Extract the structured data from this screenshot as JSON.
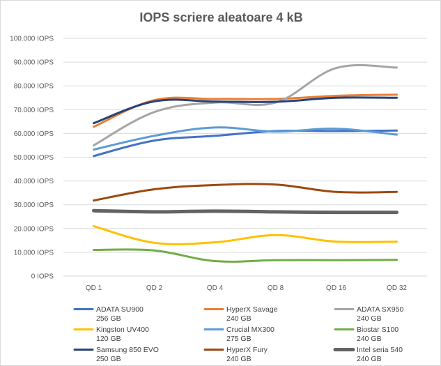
{
  "chart_data": {
    "type": "line",
    "title": "IOPS scriere aleatoare 4 kB",
    "categories": [
      "QD 1",
      "QD 2",
      "QD 4",
      "QD 8",
      "QD 16",
      "QD 32"
    ],
    "y_ticks": [
      "0 IOPS",
      "10.000 IOPS",
      "20.000 IOPS",
      "30.000 IOPS",
      "40.000 IOPS",
      "50.000 IOPS",
      "60.000 IOPS",
      "70.000 IOPS",
      "80.000 IOPS",
      "90.000 IOPS",
      "100.000 IOPS"
    ],
    "ylim": [
      0,
      100000
    ],
    "grid": true,
    "legend_position": "bottom",
    "series": [
      {
        "name": "ADATA SU900 256 GB",
        "line1": "ADATA SU900",
        "line2": "256 GB",
        "color": "#4472c4",
        "width": 3,
        "values": [
          50500,
          57000,
          59000,
          61000,
          61000,
          61200
        ]
      },
      {
        "name": "HyperX Savage 240 GB",
        "line1": "HyperX Savage",
        "line2": "240 GB",
        "color": "#ed7d31",
        "width": 3,
        "values": [
          62800,
          74000,
          74500,
          74500,
          75800,
          76300
        ]
      },
      {
        "name": "ADATA SX950 240 GB",
        "line1": "ADATA SX950",
        "line2": "240 GB",
        "color": "#a5a5a5",
        "width": 3,
        "values": [
          55000,
          69000,
          73000,
          73000,
          87500,
          87700
        ]
      },
      {
        "name": "Kingston UV400 120 GB",
        "line1": "Kingston UV400",
        "line2": "120 GB",
        "color": "#ffc000",
        "width": 3,
        "values": [
          21000,
          14000,
          14200,
          17200,
          14500,
          14500
        ]
      },
      {
        "name": "Crucial MX300 275 GB",
        "line1": "Crucial MX300",
        "line2": "275 GB",
        "color": "#5b9bd5",
        "width": 3,
        "values": [
          53200,
          59000,
          62500,
          60800,
          62000,
          59500
        ]
      },
      {
        "name": "Biostar S100 240 GB",
        "line1": "Biostar S100",
        "line2": "240 GB",
        "color": "#70ad47",
        "width": 3,
        "values": [
          11000,
          10800,
          6300,
          6700,
          6700,
          6800
        ]
      },
      {
        "name": "Samsung 850 EVO 250 GB",
        "line1": "Samsung 850 EVO",
        "line2": "250 GB",
        "color": "#264478",
        "width": 3,
        "values": [
          64300,
          73500,
          73400,
          73300,
          75000,
          75000
        ]
      },
      {
        "name": "HyperX Fury 240 GB",
        "line1": "HyperX Fury",
        "line2": "240 GB",
        "color": "#9e480e",
        "width": 3,
        "values": [
          31800,
          36500,
          38300,
          38500,
          35400,
          35400
        ]
      },
      {
        "name": "Intel seria 540 240 GB",
        "line1": "Intel seria 540",
        "line2": "240 GB",
        "color": "#636363",
        "width": 5,
        "values": [
          27500,
          27000,
          27300,
          27000,
          26800,
          26800
        ]
      }
    ]
  }
}
